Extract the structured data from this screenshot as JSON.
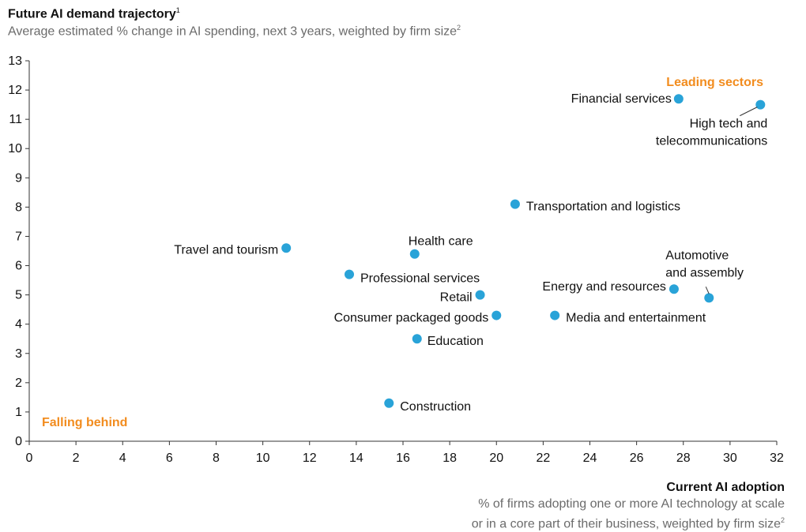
{
  "title": "Future AI demand trajectory",
  "title_note": "1",
  "subtitle": "Average estimated % change in AI spending, next 3 years, weighted by firm size",
  "subtitle_note": "2",
  "xaxis_title": "Current AI adoption",
  "xaxis_sub_line1": "% of firms adopting one or more AI technology at scale",
  "xaxis_sub_line2": "or in a core part of their business, weighted by firm size",
  "xaxis_sub_note": "2",
  "colors": {
    "dot": "#29a3d8",
    "annotation": "#f28c1e",
    "axis": "#333333",
    "text": "#111111"
  },
  "chart_data": {
    "type": "scatter",
    "xlim": [
      0,
      32
    ],
    "ylim": [
      0,
      13
    ],
    "xticks": [
      0,
      2,
      4,
      6,
      8,
      10,
      12,
      14,
      16,
      18,
      20,
      22,
      24,
      26,
      28,
      30,
      32
    ],
    "yticks": [
      0,
      1,
      2,
      3,
      4,
      5,
      6,
      7,
      8,
      9,
      10,
      11,
      12,
      13
    ],
    "grid": false,
    "annotations": [
      {
        "text": "Leading sectors",
        "position": "top-right"
      },
      {
        "text": "Falling behind",
        "position": "bottom-left"
      }
    ],
    "points": [
      {
        "label": "Financial services",
        "x": 27.8,
        "y": 11.7
      },
      {
        "label": "High tech and telecommunications",
        "x": 31.3,
        "y": 11.5
      },
      {
        "label": "Transportation and logistics",
        "x": 20.8,
        "y": 8.1
      },
      {
        "label": "Travel and tourism",
        "x": 11.0,
        "y": 6.6
      },
      {
        "label": "Health care",
        "x": 16.5,
        "y": 6.4
      },
      {
        "label": "Professional services",
        "x": 13.7,
        "y": 5.7
      },
      {
        "label": "Retail",
        "x": 19.3,
        "y": 5.0
      },
      {
        "label": "Energy and resources",
        "x": 27.6,
        "y": 5.2
      },
      {
        "label": "Automotive and assembly",
        "x": 29.1,
        "y": 4.9
      },
      {
        "label": "Consumer packaged goods",
        "x": 20.0,
        "y": 4.3
      },
      {
        "label": "Media and entertainment",
        "x": 22.5,
        "y": 4.3
      },
      {
        "label": "Education",
        "x": 16.6,
        "y": 3.5
      },
      {
        "label": "Construction",
        "x": 15.4,
        "y": 1.3
      }
    ]
  }
}
